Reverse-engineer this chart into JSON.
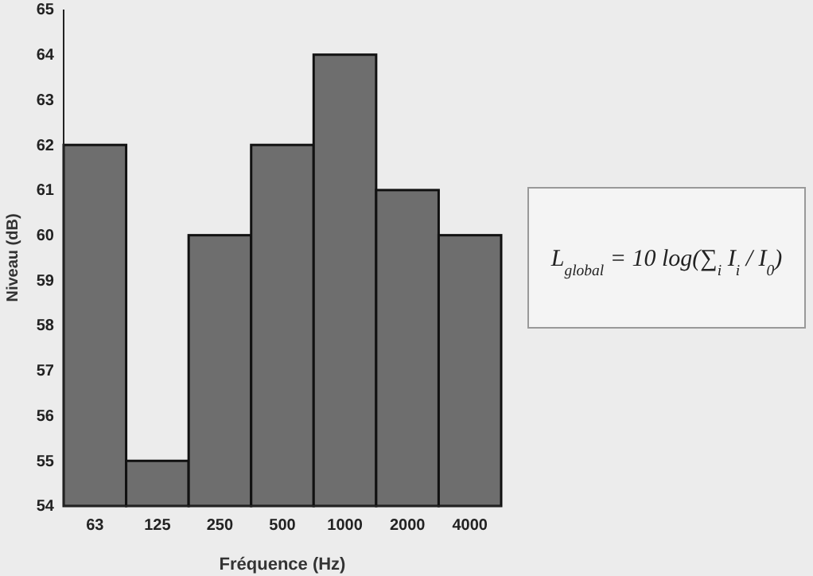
{
  "chart_data": {
    "type": "bar",
    "xlabel": "Fréquence (Hz)",
    "ylabel": "Niveau (dB)",
    "categories": [
      "63",
      "125",
      "250",
      "500",
      "1000",
      "2000",
      "4000"
    ],
    "values": [
      62,
      55,
      60,
      62,
      64,
      61,
      60
    ],
    "color": "#6e6e6e",
    "ylim": [
      54,
      65
    ],
    "yticks": [
      54,
      55,
      56,
      57,
      58,
      59,
      60,
      61,
      62,
      63,
      64,
      65
    ],
    "grid": false,
    "annotations": [
      "L$_{global}$ = 10 log(∑$_{i}$ I$_{i}$ / I$_{0}$)"
    ]
  }
}
